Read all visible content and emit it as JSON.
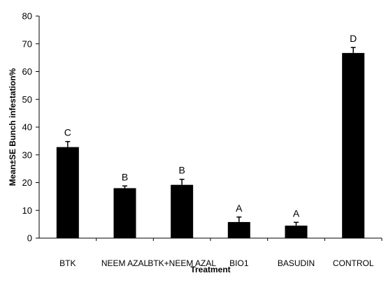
{
  "chart_data": {
    "type": "bar",
    "categories": [
      "BTK",
      "NEEM AZAL",
      "BTK+NEEM AZAL",
      "BIO1",
      "BASUDIN",
      "CONTROL"
    ],
    "values": [
      32.8,
      18.0,
      19.2,
      5.8,
      4.5,
      66.7
    ],
    "errors": [
      2.0,
      0.8,
      2.0,
      1.8,
      1.2,
      2.0
    ],
    "significance_letters": [
      "C",
      "B",
      "B",
      "A",
      "A",
      "D"
    ],
    "title": "",
    "xlabel": "Treatment",
    "ylabel": "Mean±SE Bunch infestation%",
    "ylim": [
      0,
      80
    ],
    "yticks": [
      "0",
      "10",
      "20",
      "30",
      "40",
      "50",
      "60",
      "70",
      "80"
    ],
    "bar_color": "#000000",
    "grid": false,
    "legend": "none"
  }
}
